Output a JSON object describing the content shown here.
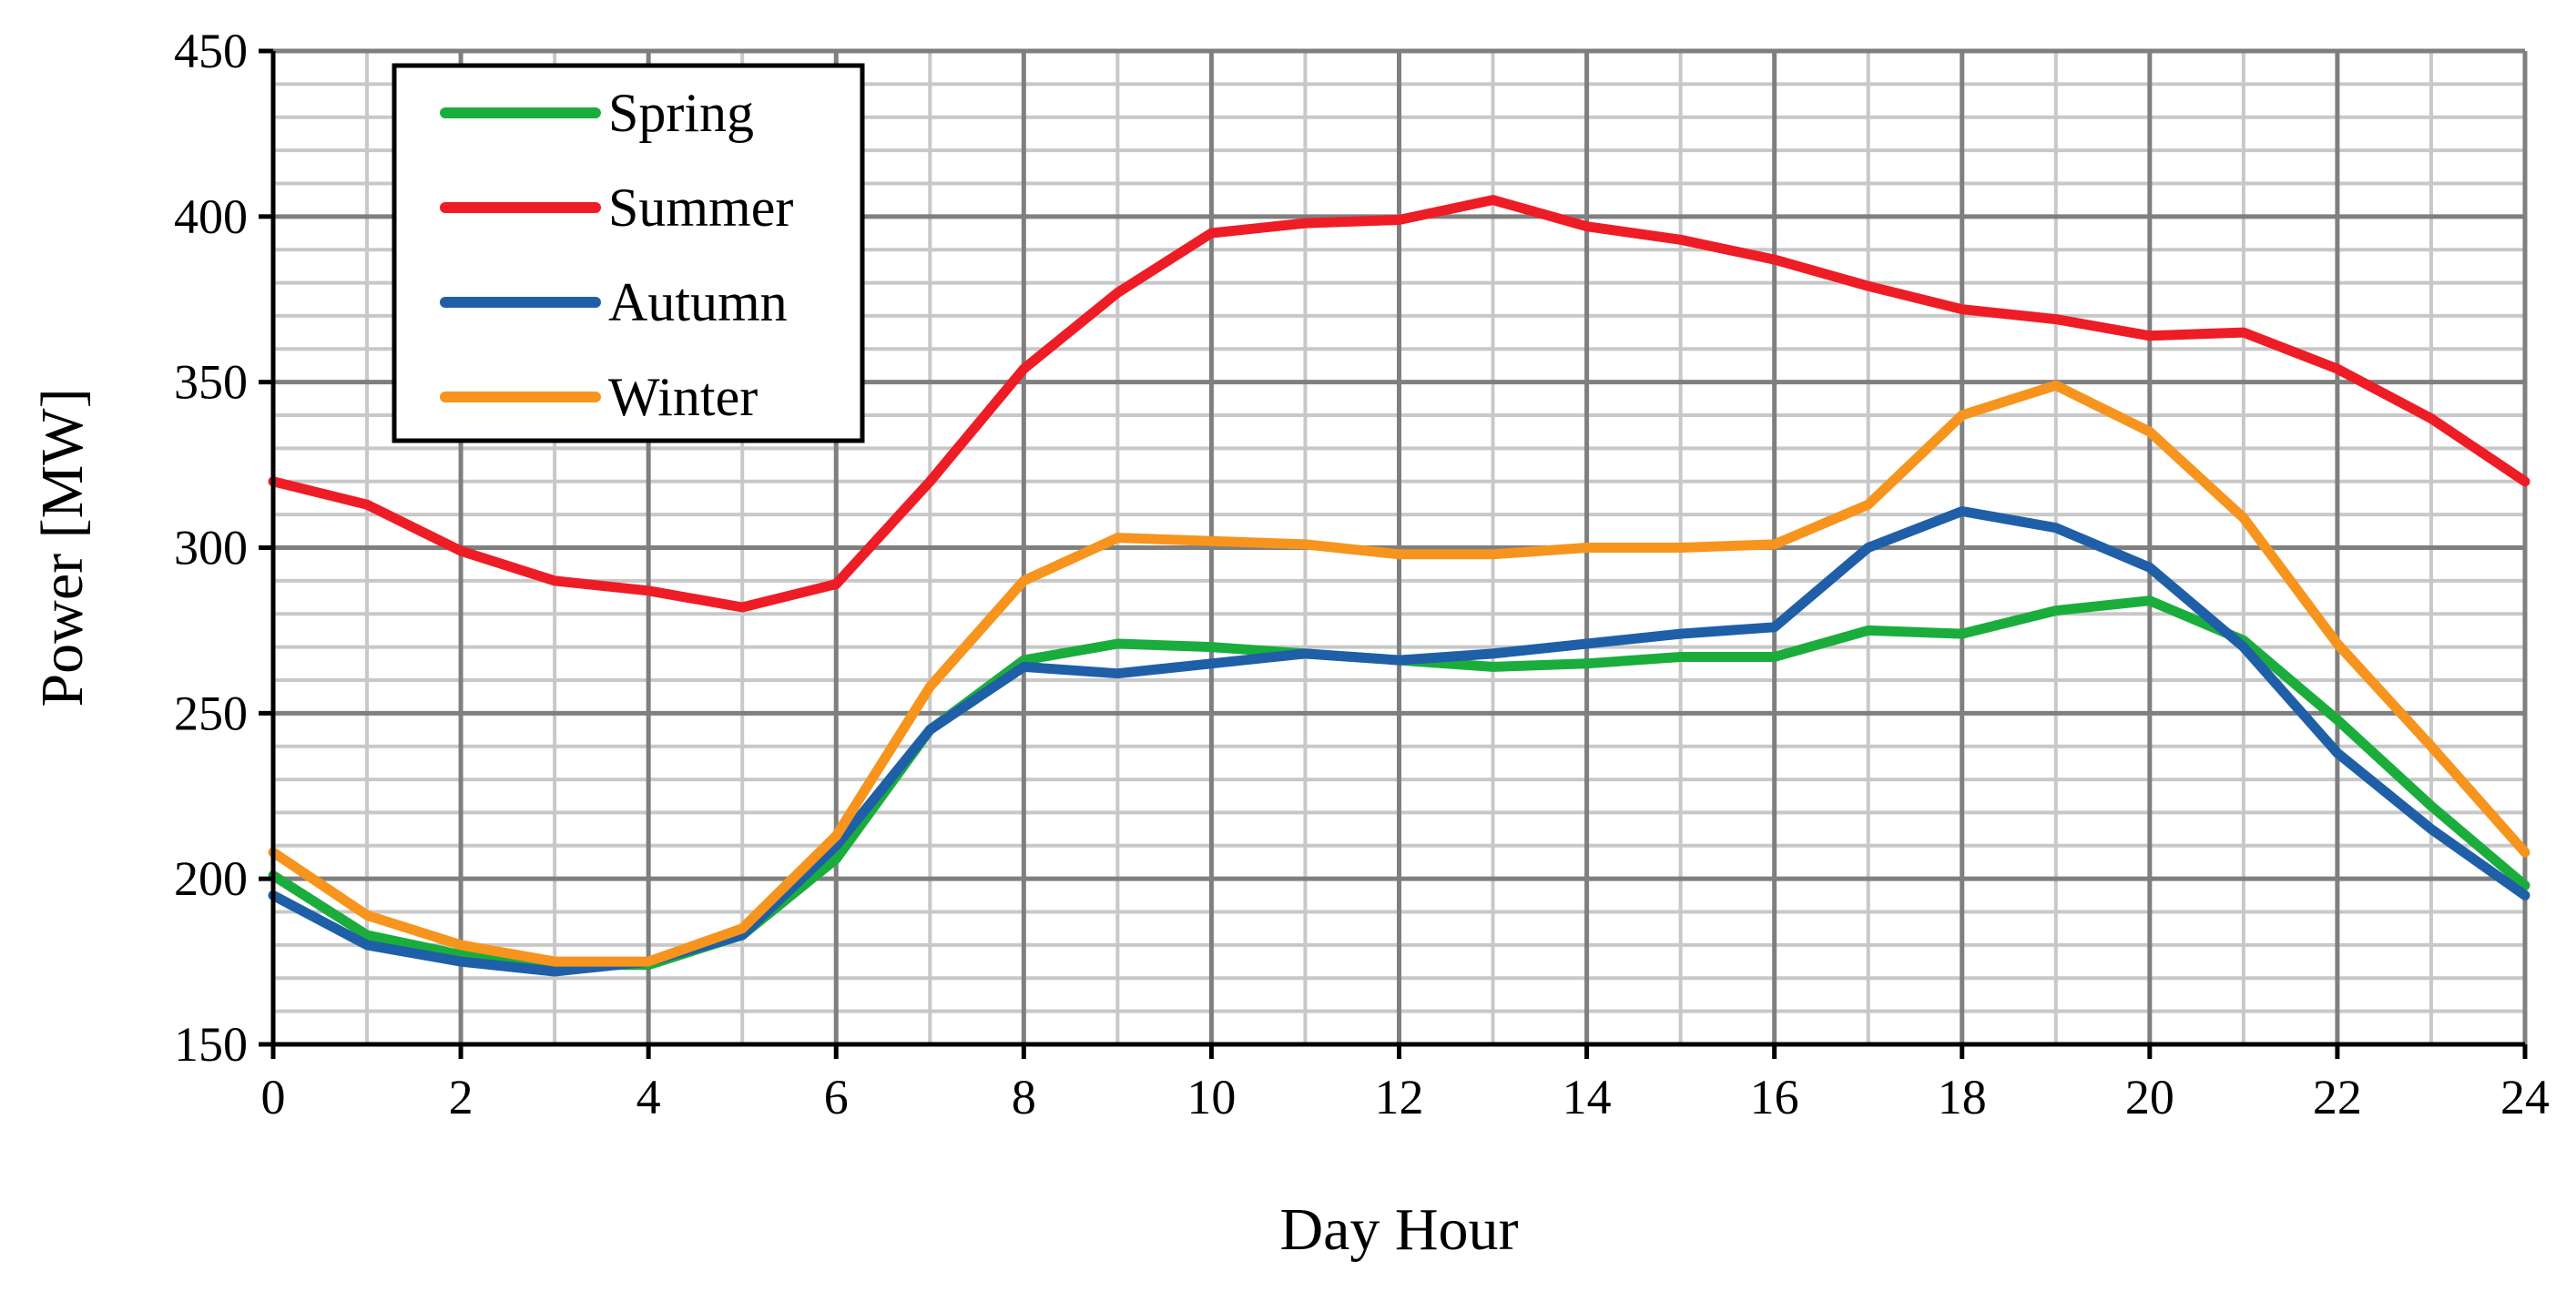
{
  "chart_data": {
    "type": "line",
    "title": "",
    "xlabel": "Day Hour",
    "ylabel": "Power [MW]",
    "xlim": [
      0,
      24
    ],
    "ylim": [
      150,
      450
    ],
    "x_ticks": [
      0,
      2,
      4,
      6,
      8,
      10,
      12,
      14,
      16,
      18,
      20,
      22,
      24
    ],
    "y_ticks": [
      150,
      200,
      250,
      300,
      350,
      400,
      450
    ],
    "x_tick_labels": [
      "0",
      "2",
      "4",
      "6",
      "8",
      "10",
      "12",
      "14",
      "16",
      "18",
      "20",
      "22",
      "24"
    ],
    "y_tick_labels": [
      "150",
      "200",
      "250",
      "300",
      "350",
      "400",
      "450"
    ],
    "grid": true,
    "legend_position": "top-left",
    "x": [
      0,
      1,
      2,
      3,
      4,
      5,
      6,
      7,
      8,
      9,
      10,
      11,
      12,
      13,
      14,
      15,
      16,
      17,
      18,
      19,
      20,
      21,
      22,
      23,
      24
    ],
    "series": [
      {
        "name": "Spring",
        "color": "#1aad3c",
        "values": [
          201,
          183,
          177,
          174,
          174,
          183,
          206,
          245,
          266,
          271,
          270,
          268,
          266,
          264,
          265,
          267,
          267,
          275,
          274,
          281,
          284,
          272,
          248,
          222,
          198
        ]
      },
      {
        "name": "Summer",
        "color": "#ee1c25",
        "values": [
          320,
          313,
          299,
          290,
          287,
          282,
          289,
          320,
          354,
          377,
          395,
          398,
          399,
          405,
          397,
          393,
          387,
          379,
          372,
          369,
          364,
          365,
          354,
          339,
          320
        ]
      },
      {
        "name": "Autumn",
        "color": "#1f5fa8",
        "values": [
          195,
          180,
          175,
          172,
          175,
          183,
          210,
          245,
          264,
          262,
          265,
          268,
          266,
          268,
          271,
          274,
          276,
          300,
          311,
          306,
          294,
          270,
          238,
          215,
          195
        ]
      },
      {
        "name": "Winter",
        "color": "#f7941d",
        "values": [
          208,
          189,
          180,
          175,
          175,
          185,
          213,
          258,
          290,
          303,
          302,
          301,
          298,
          298,
          300,
          300,
          301,
          313,
          340,
          349,
          335,
          309,
          271,
          240,
          208
        ]
      }
    ]
  }
}
